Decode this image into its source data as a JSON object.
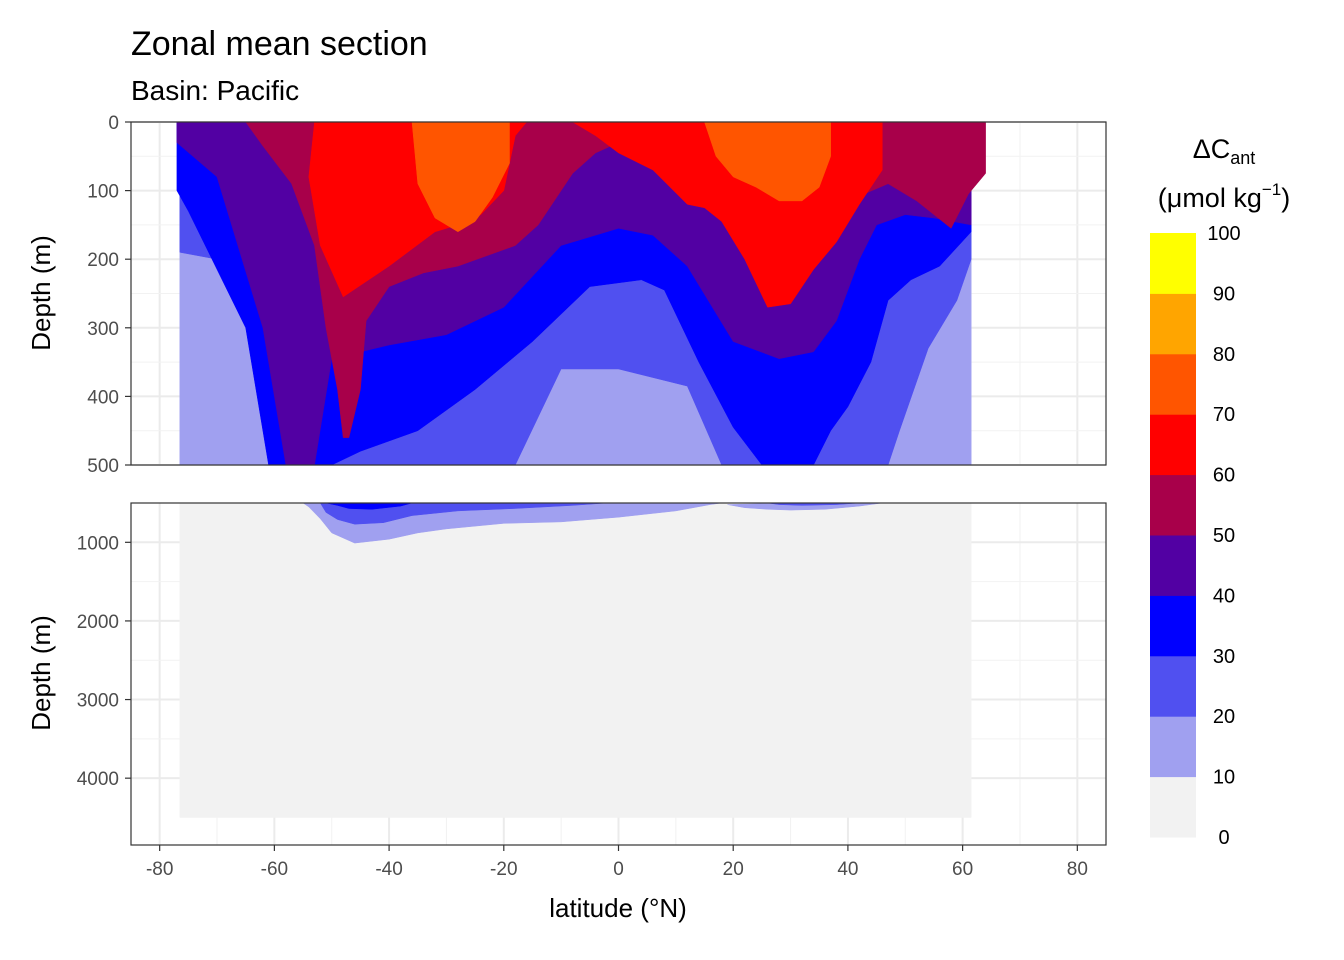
{
  "chart_data": {
    "type": "contour",
    "title": "Zonal mean section",
    "subtitle": "Basin:  Pacific",
    "xlabel": "latitude (°N)",
    "ylabel_upper": "Depth (m)",
    "ylabel_lower": "Depth (m)",
    "xlim": [
      -85,
      85
    ],
    "xticks": [
      -80,
      -60,
      -40,
      -20,
      0,
      20,
      40,
      60,
      80
    ],
    "upper_panel": {
      "ylim": [
        0,
        500
      ],
      "yticks": [
        0,
        100,
        200,
        300,
        400,
        500
      ]
    },
    "lower_panel": {
      "ylim": [
        500,
        4850
      ],
      "yticks": [
        1000,
        2000,
        3000,
        4000
      ]
    },
    "legend": {
      "title": "ΔC",
      "title_subscript": "ant",
      "unit": "(μmol kg",
      "unit_superscript": "−1",
      "unit_end": ")",
      "breaks": [
        0,
        10,
        20,
        30,
        40,
        50,
        60,
        70,
        80,
        90,
        100
      ],
      "break_labels": [
        "0",
        "10",
        "20",
        "30",
        "40",
        "50",
        "60",
        "70",
        "80",
        "90",
        "100"
      ],
      "colors": [
        "#f2f2f2",
        "#a0a0f0",
        "#5050f0",
        "#0000ff",
        "#5200a3",
        "#a8004a",
        "#ff0000",
        "#ff5500",
        "#ffa500",
        "#ffff00"
      ]
    },
    "sections": {
      "upper": [
        {
          "level": 0,
          "points": [
            [
              -76.5,
              0
            ],
            [
              61.5,
              0
            ],
            [
              61.5,
              500
            ],
            [
              -76.5,
              500
            ]
          ]
        },
        {
          "level": 1,
          "points": [
            [
              -76.5,
              0
            ],
            [
              61.5,
              0
            ],
            [
              61.5,
              500
            ],
            [
              -76.5,
              500
            ]
          ]
        },
        {
          "level": 2,
          "points": [
            [
              -76.5,
              0
            ],
            [
              61.5,
              0
            ],
            [
              61.5,
              200
            ],
            [
              59,
              260
            ],
            [
              54,
              330
            ],
            [
              49,
              450
            ],
            [
              47,
              500
            ],
            [
              18,
              500
            ],
            [
              12,
              385
            ],
            [
              0,
              360
            ],
            [
              -10,
              360
            ],
            [
              -18,
              500
            ],
            [
              -57,
              500
            ],
            [
              -63,
              300
            ],
            [
              -70,
              200
            ],
            [
              -76.5,
              190
            ]
          ]
        },
        {
          "level": 3,
          "points": [
            [
              -77,
              0
            ],
            [
              61.5,
              0
            ],
            [
              61.5,
              160
            ],
            [
              56,
              210
            ],
            [
              51,
              230
            ],
            [
              47,
              260
            ],
            [
              44,
              350
            ],
            [
              40,
              415
            ],
            [
              37,
              450
            ],
            [
              34,
              500
            ],
            [
              25,
              500
            ],
            [
              20,
              445
            ],
            [
              14,
              350
            ],
            [
              8,
              245
            ],
            [
              4,
              230
            ],
            [
              -5,
              240
            ],
            [
              -15,
              320
            ],
            [
              -25,
              390
            ],
            [
              -35,
              450
            ],
            [
              -45,
              480
            ],
            [
              -50,
              500
            ],
            [
              -61,
              500
            ],
            [
              -65,
              300
            ],
            [
              -75,
              130
            ],
            [
              -77,
              100
            ]
          ]
        },
        {
          "level": 4,
          "points": [
            [
              -77,
              0
            ],
            [
              61.5,
              0
            ],
            [
              61.5,
              150
            ],
            [
              55,
              140
            ],
            [
              50,
              135
            ],
            [
              45,
              150
            ],
            [
              42,
              200
            ],
            [
              38,
              290
            ],
            [
              34,
              335
            ],
            [
              28,
              345
            ],
            [
              20,
              320
            ],
            [
              12,
              210
            ],
            [
              6,
              165
            ],
            [
              0,
              155
            ],
            [
              -10,
              180
            ],
            [
              -20,
              270
            ],
            [
              -30,
              310
            ],
            [
              -40,
              325
            ],
            [
              -50,
              345
            ],
            [
              -53,
              500
            ],
            [
              -58,
              500
            ],
            [
              -62,
              300
            ],
            [
              -70,
              80
            ],
            [
              -77,
              30
            ]
          ]
        },
        {
          "level": 5,
          "points": [
            [
              -73,
              0
            ],
            [
              64,
              0
            ],
            [
              64,
              75
            ],
            [
              61,
              105
            ],
            [
              58,
              155
            ],
            [
              52,
              115
            ],
            [
              47,
              90
            ],
            [
              40,
              115
            ],
            [
              34,
              155
            ],
            [
              28,
              160
            ],
            [
              20,
              130
            ],
            [
              12,
              85
            ],
            [
              6,
              45
            ],
            [
              0,
              30
            ],
            [
              -4,
              45
            ],
            [
              -8,
              75
            ],
            [
              -10,
              100
            ],
            [
              -14,
              150
            ],
            [
              -18,
              180
            ],
            [
              -28,
              210
            ],
            [
              -34,
              220
            ],
            [
              -40,
              240
            ],
            [
              -44,
              290
            ],
            [
              -45,
              390
            ],
            [
              -47,
              460
            ],
            [
              -48,
              460
            ],
            [
              -49,
              390
            ],
            [
              -51,
              300
            ],
            [
              -53,
              180
            ],
            [
              -57,
              90
            ],
            [
              -62,
              35
            ],
            [
              -65,
              0
            ]
          ]
        },
        {
          "level": 6,
          "points": [
            [
              -53,
              0
            ],
            [
              46,
              0
            ],
            [
              46,
              70
            ],
            [
              42,
              120
            ],
            [
              38,
              175
            ],
            [
              34,
              215
            ],
            [
              30,
              265
            ],
            [
              26,
              270
            ],
            [
              22,
              200
            ],
            [
              18,
              145
            ],
            [
              15,
              125
            ],
            [
              12,
              120
            ],
            [
              6,
              70
            ],
            [
              0,
              45
            ],
            [
              -4,
              20
            ],
            [
              -8,
              0
            ],
            [
              -16,
              0
            ],
            [
              -18,
              20
            ],
            [
              -20,
              100
            ],
            [
              -24,
              135
            ],
            [
              -28,
              150
            ],
            [
              -32,
              160
            ],
            [
              -40,
              210
            ],
            [
              -48,
              255
            ],
            [
              -52,
              180
            ],
            [
              -54,
              80
            ]
          ]
        },
        {
          "level": 7,
          "points": [
            [
              -36,
              0
            ],
            [
              -19,
              0
            ],
            [
              -19,
              60
            ],
            [
              -22,
              110
            ],
            [
              -25,
              145
            ],
            [
              -28,
              160
            ],
            [
              -32,
              140
            ],
            [
              -35,
              90
            ]
          ]
        },
        {
          "level": 7,
          "points": [
            [
              15,
              0
            ],
            [
              37,
              0
            ],
            [
              37,
              50
            ],
            [
              35,
              95
            ],
            [
              32,
              115
            ],
            [
              28,
              115
            ],
            [
              24,
              95
            ],
            [
              20,
              80
            ],
            [
              17,
              50
            ]
          ]
        }
      ],
      "lower": [
        {
          "level": 0,
          "points": [
            [
              -76.5,
              500
            ],
            [
              61.5,
              500
            ],
            [
              61.5,
              4500
            ],
            [
              -76.5,
              4500
            ]
          ]
        },
        {
          "level": 1,
          "points": [
            [
              -55,
              500
            ],
            [
              18,
              500
            ],
            [
              16,
              520
            ],
            [
              10,
              600
            ],
            [
              0,
              680
            ],
            [
              -10,
              740
            ],
            [
              -20,
              760
            ],
            [
              -30,
              830
            ],
            [
              -35,
              880
            ],
            [
              -40,
              960
            ],
            [
              -46,
              1010
            ],
            [
              -50,
              880
            ],
            [
              -52,
              700
            ],
            [
              -54,
              550
            ]
          ]
        },
        {
          "level": 1,
          "points": [
            [
              30,
              500
            ],
            [
              46,
              500
            ],
            [
              42,
              540
            ],
            [
              36,
              580
            ],
            [
              30,
              590
            ],
            [
              26,
              580
            ],
            [
              22,
              560
            ],
            [
              19,
              520
            ]
          ]
        },
        {
          "level": 2,
          "points": [
            [
              -52,
              500
            ],
            [
              -2,
              500
            ],
            [
              -8,
              530
            ],
            [
              -18,
              570
            ],
            [
              -28,
              600
            ],
            [
              -36,
              660
            ],
            [
              -41,
              750
            ],
            [
              -46,
              770
            ],
            [
              -49,
              710
            ],
            [
              -51,
              620
            ]
          ]
        },
        {
          "level": 2,
          "points": [
            [
              26,
              500
            ],
            [
              42,
              500
            ],
            [
              38,
              520
            ],
            [
              32,
              530
            ],
            [
              28,
              520
            ]
          ]
        },
        {
          "level": 3,
          "points": [
            [
              -51,
              500
            ],
            [
              -36,
              500
            ],
            [
              -38,
              540
            ],
            [
              -43,
              580
            ],
            [
              -47,
              570
            ],
            [
              -49,
              530
            ]
          ]
        }
      ]
    }
  }
}
